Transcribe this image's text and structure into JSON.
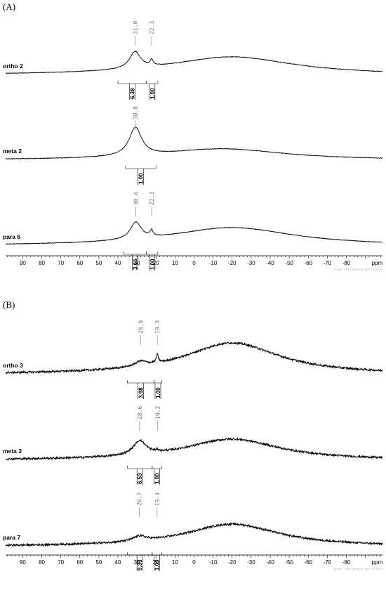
{
  "chart_data": [
    {
      "type": "line",
      "panel_label": "(A)",
      "x_unit_label": "ppm",
      "x_axis_reversed": true,
      "xlim": [
        99,
        -99
      ],
      "ticks": [
        90,
        80,
        70,
        60,
        50,
        40,
        30,
        20,
        10,
        0,
        -10,
        -20,
        -30,
        -40,
        -50,
        -60,
        -70,
        -80
      ],
      "tick_labels": [
        "90",
        "80",
        "70",
        "60",
        "50",
        "40",
        "30",
        "20",
        "10",
        "0",
        "-10",
        "-20",
        "-30",
        "-40",
        "-50",
        "-60",
        "-70",
        "-80"
      ],
      "scale_note": "Scale: 7.535 ppm/cm, 867.3 Hz/cm",
      "noise": 0.4,
      "series": [
        {
          "name": "ortho 2",
          "peaks": [
            {
              "ppm": 31.0,
              "label": "31.0"
            },
            {
              "ppm": 22.3,
              "label": "22.3"
            }
          ],
          "components": [
            {
              "center": 31.0,
              "height": 24,
              "width": 3.5
            },
            {
              "center": 22.3,
              "height": 8,
              "width": 0.9
            },
            {
              "center": -20,
              "height": 26,
              "width": 40
            }
          ],
          "integrals": [
            {
              "from": 40,
              "to": 25,
              "value": "6.38"
            },
            {
              "from": 25,
              "to": 19,
              "value": "1.00"
            }
          ]
        },
        {
          "name": "meta 2",
          "peaks": [
            {
              "ppm": 30.8,
              "label": "30.8"
            }
          ],
          "components": [
            {
              "center": 30.8,
              "height": 40,
              "width": 4.0
            },
            {
              "center": -15,
              "height": 16,
              "width": 40
            }
          ],
          "integrals": [
            {
              "from": 36,
              "to": 20,
              "value": "1.00"
            }
          ]
        },
        {
          "name": "para 6",
          "peaks": [
            {
              "ppm": 30.6,
              "label": "30.6"
            },
            {
              "ppm": 22.3,
              "label": "22.3"
            }
          ],
          "components": [
            {
              "center": 30.6,
              "height": 24,
              "width": 3.5
            },
            {
              "center": 22.3,
              "height": 8,
              "width": 0.9
            },
            {
              "center": -20,
              "height": 26,
              "width": 40
            }
          ],
          "integrals": [
            {
              "from": 37,
              "to": 25,
              "value": "3.65"
            },
            {
              "from": 25,
              "to": 19,
              "value": "1.00"
            }
          ]
        }
      ]
    },
    {
      "type": "line",
      "panel_label": "(B)",
      "x_unit_label": "ppm",
      "x_axis_reversed": true,
      "xlim": [
        99,
        -99
      ],
      "ticks": [
        90,
        80,
        70,
        60,
        50,
        40,
        30,
        20,
        10,
        0,
        -10,
        -20,
        -30,
        -40,
        -50,
        -60,
        -70,
        -80
      ],
      "tick_labels": [
        "90",
        "80",
        "70",
        "60",
        "50",
        "40",
        "30",
        "20",
        "10",
        "0",
        "-10",
        "-20",
        "-30",
        "-40",
        "-50",
        "-60",
        "-70",
        "-80"
      ],
      "scale_note": "Scale: 7.535 ppm/cm, 867.3 Hz/cm",
      "noise": 1.4,
      "series": [
        {
          "name": "ortho 3",
          "peaks": [
            {
              "ppm": 28.0,
              "label": "28.0"
            },
            {
              "ppm": 19.3,
              "label": "19.3"
            }
          ],
          "components": [
            {
              "center": 28.0,
              "height": 7,
              "width": 3.5
            },
            {
              "center": 19.3,
              "height": 11,
              "width": 0.7
            },
            {
              "center": -20,
              "height": 45,
              "width": 30
            }
          ],
          "integrals": [
            {
              "from": 35,
              "to": 21,
              "value": "3.98"
            },
            {
              "from": 21,
              "to": 17,
              "value": "1.00"
            }
          ]
        },
        {
          "name": "meta 3",
          "peaks": [
            {
              "ppm": 28.6,
              "label": "28.6"
            },
            {
              "ppm": 19.2,
              "label": "19.2"
            }
          ],
          "components": [
            {
              "center": 28.6,
              "height": 20,
              "width": 4.0
            },
            {
              "center": 19.2,
              "height": 2,
              "width": 0.7
            },
            {
              "center": -20,
              "height": 30,
              "width": 30
            }
          ],
          "integrals": [
            {
              "from": 35,
              "to": 22,
              "value": "6.53"
            },
            {
              "from": 22,
              "to": 17,
              "value": "1.00"
            }
          ]
        },
        {
          "name": "para 7",
          "peaks": [
            {
              "ppm": 28.7,
              "label": "28.7"
            },
            {
              "ppm": 19.4,
              "label": "19.4"
            }
          ],
          "components": [
            {
              "center": 28.7,
              "height": 7,
              "width": 4.0
            },
            {
              "center": -20,
              "height": 32,
              "width": 30
            }
          ],
          "integrals": [
            {
              "from": 35,
              "to": 22,
              "value": "9.33"
            },
            {
              "from": 22,
              "to": 17,
              "value": "1.00"
            }
          ]
        }
      ]
    }
  ]
}
